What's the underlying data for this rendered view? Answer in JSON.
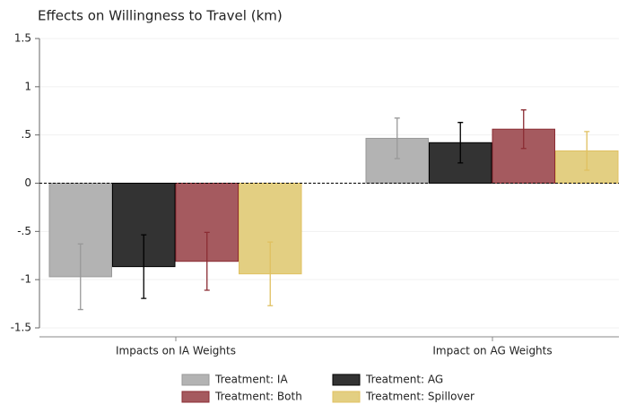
{
  "chart_data": {
    "type": "bar",
    "title": "Effects on Willingness to Travel (km)",
    "categories": [
      "Impacts on IA Weights",
      "Impact on AG Weights"
    ],
    "series": [
      {
        "name": "Treatment: IA",
        "color": "#b3b3b3",
        "values": [
          -0.97,
          0.465
        ],
        "errors": [
          0.34,
          0.21
        ]
      },
      {
        "name": "Treatment: AG",
        "color": "#333333",
        "values": [
          -0.865,
          0.42
        ],
        "errors": [
          0.33,
          0.21
        ]
      },
      {
        "name": "Treatment: Both",
        "color": "#a55a5f",
        "values": [
          -0.81,
          0.56
        ],
        "errors": [
          0.3,
          0.2
        ]
      },
      {
        "name": "Treatment: Spillover",
        "color": "#e3cf82",
        "values": [
          -0.94,
          0.335
        ],
        "errors": [
          0.33,
          0.2
        ]
      }
    ],
    "ylim": [
      -1.5,
      1.5
    ],
    "yticks": [
      1.5,
      1,
      {
        "value": 0.5,
        "label": ".5"
      },
      0,
      {
        "value": -0.5,
        "label": "-.5"
      },
      -1,
      -1.5
    ],
    "grid": true
  }
}
